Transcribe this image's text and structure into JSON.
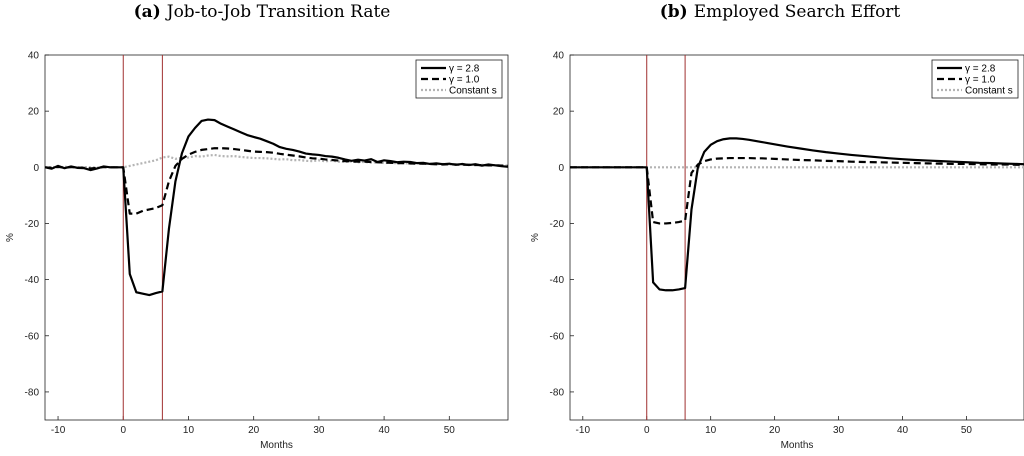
{
  "chart_data": [
    {
      "type": "line",
      "panel_tag": "(a)",
      "title": "Job-to-Job Transition Rate",
      "xlabel": "Months",
      "ylabel": "%",
      "xlim": [
        -12,
        59
      ],
      "ylim": [
        -90,
        40
      ],
      "xticks": [
        -10,
        0,
        10,
        20,
        30,
        40,
        50
      ],
      "yticks": [
        40,
        20,
        0,
        -20,
        -40,
        -60,
        -80
      ],
      "vlines": [
        0,
        6
      ],
      "vline_color": "#a03030",
      "grid": false,
      "legend_position": "top-right",
      "series": [
        {
          "name": "γ = 2.8",
          "style": "solid",
          "color": "#000000",
          "x": [
            -12,
            -11,
            -10,
            -9,
            -8,
            -7,
            -6,
            -5,
            -4,
            -3,
            -2,
            -1,
            0,
            1,
            2,
            3,
            4,
            5,
            6,
            7,
            8,
            9,
            10,
            11,
            12,
            13,
            14,
            15,
            16,
            17,
            18,
            19,
            20,
            21,
            22,
            23,
            24,
            25,
            26,
            27,
            28,
            29,
            30,
            31,
            32,
            33,
            34,
            35,
            36,
            37,
            38,
            39,
            40,
            41,
            42,
            43,
            44,
            45,
            46,
            47,
            48,
            49,
            50,
            51,
            52,
            53,
            54,
            55,
            56,
            57,
            58,
            59
          ],
          "y": [
            0,
            -0.5,
            0.5,
            -0.3,
            0.3,
            -0.2,
            -0.3,
            -1,
            -0.4,
            0.3,
            0,
            0,
            0,
            -38,
            -44.5,
            -45,
            -45.5,
            -44.8,
            -44.2,
            -22,
            -5,
            5,
            11,
            14,
            16.5,
            17,
            16.8,
            15.5,
            14.5,
            13.5,
            12.5,
            11.5,
            10.8,
            10.2,
            9.3,
            8.4,
            7.2,
            6.6,
            6.2,
            5.6,
            4.9,
            4.6,
            4.4,
            4,
            3.8,
            3.4,
            2.8,
            2.3,
            2.7,
            2.4,
            2.9,
            1.9,
            2.5,
            2.2,
            1.8,
            2,
            1.9,
            1.5,
            1.6,
            1.2,
            1.4,
            1.1,
            1.3,
            0.9,
            1.2,
            0.8,
            1.1,
            0.6,
            1,
            0.7,
            0.4,
            0.2
          ]
        },
        {
          "name": "γ = 1.0",
          "style": "dashed",
          "color": "#000000",
          "x": [
            -12,
            -11,
            -10,
            -9,
            -8,
            -7,
            -6,
            -5,
            -4,
            -3,
            -2,
            -1,
            0,
            1,
            2,
            3,
            4,
            5,
            6,
            7,
            8,
            9,
            10,
            11,
            12,
            13,
            14,
            15,
            16,
            17,
            18,
            19,
            20,
            21,
            22,
            23,
            24,
            25,
            26,
            27,
            28,
            29,
            30,
            31,
            32,
            33,
            34,
            35,
            36,
            37,
            38,
            39,
            40,
            41,
            42,
            43,
            44,
            45,
            46,
            47,
            48,
            49,
            50,
            51,
            52,
            53,
            54,
            55,
            56,
            57,
            58,
            59
          ],
          "y": [
            0,
            -0.2,
            0.2,
            -0.2,
            0.1,
            -0.1,
            -0.2,
            -0.4,
            -0.2,
            0.1,
            0,
            0,
            0,
            -16.5,
            -16.5,
            -15.5,
            -15,
            -14.5,
            -13.5,
            -5,
            0.5,
            3,
            4.5,
            5.5,
            6.2,
            6.5,
            6.8,
            6.8,
            6.7,
            6.5,
            6.2,
            5.9,
            5.6,
            5.5,
            5.4,
            5.2,
            4.8,
            4.5,
            4.2,
            3.9,
            3.5,
            3.2,
            3.1,
            2.8,
            2.6,
            2.4,
            2.2,
            2.1,
            2,
            2,
            1.9,
            1.8,
            1.7,
            1.6,
            1.5,
            1.5,
            1.4,
            1.3,
            1.3,
            1.2,
            1.1,
            1,
            1.1,
            1,
            0.9,
            0.9,
            0.8,
            0.8,
            0.7,
            0.7,
            0.6,
            0.5
          ]
        },
        {
          "name": "Constant s",
          "style": "dotted",
          "color": "#b4b4b4",
          "x": [
            -12,
            -11,
            -10,
            -9,
            -8,
            -7,
            -6,
            -5,
            -4,
            -3,
            -2,
            -1,
            0,
            1,
            2,
            3,
            4,
            5,
            6,
            7,
            8,
            9,
            10,
            11,
            12,
            13,
            14,
            15,
            16,
            17,
            18,
            19,
            20,
            21,
            22,
            23,
            24,
            25,
            26,
            27,
            28,
            29,
            30,
            31,
            32,
            33,
            34,
            35,
            36,
            37,
            38,
            39,
            40,
            41,
            42,
            43,
            44,
            45,
            46,
            47,
            48,
            49,
            50,
            51,
            52,
            53,
            54,
            55,
            56,
            57,
            58,
            59
          ],
          "y": [
            0,
            0.1,
            -0.1,
            0.2,
            0,
            -0.1,
            0.1,
            0,
            -0.1,
            0.1,
            0,
            0,
            0,
            0.5,
            1,
            1.5,
            2,
            2.5,
            3.5,
            3.8,
            3,
            3.4,
            3.5,
            4,
            3.8,
            4.2,
            4.4,
            4,
            3.9,
            4,
            3.7,
            3.5,
            3.3,
            3.3,
            3.2,
            3,
            2.8,
            2.9,
            2.5,
            2.6,
            2.3,
            2.2,
            2.5,
            2.1,
            2.4,
            2,
            1.9,
            2.1,
            1.8,
            1.9,
            1.7,
            1.8,
            1.5,
            1.6,
            1.4,
            1.5,
            1.3,
            1.4,
            1.2,
            1.3,
            1.1,
            1.2,
            1,
            1.1,
            0.9,
            1,
            0.8,
            0.9,
            0.7,
            0.8,
            0.7,
            0.6
          ]
        }
      ]
    },
    {
      "type": "line",
      "panel_tag": "(b)",
      "title": "Employed Search Effort",
      "xlabel": "Months",
      "ylabel": "%",
      "xlim": [
        -12,
        59
      ],
      "ylim": [
        -90,
        40
      ],
      "xticks": [
        -10,
        0,
        10,
        20,
        30,
        40,
        50
      ],
      "yticks": [
        40,
        20,
        0,
        -20,
        -40,
        -60,
        -80
      ],
      "vlines": [
        0,
        6
      ],
      "vline_color": "#a03030",
      "grid": false,
      "legend_position": "top-right",
      "series": [
        {
          "name": "γ = 2.8",
          "style": "solid",
          "color": "#000000",
          "x": [
            -12,
            -11,
            -10,
            -9,
            -8,
            -7,
            -6,
            -5,
            -4,
            -3,
            -2,
            -1,
            0,
            1,
            2,
            3,
            4,
            5,
            6,
            7,
            8,
            9,
            10,
            11,
            12,
            13,
            14,
            15,
            16,
            17,
            18,
            19,
            20,
            22,
            24,
            26,
            28,
            30,
            32,
            34,
            36,
            38,
            40,
            42,
            44,
            46,
            48,
            50,
            52,
            54,
            56,
            58,
            59
          ],
          "y": [
            0,
            0,
            0,
            0,
            0,
            0,
            0,
            0,
            0,
            0,
            0,
            0,
            0,
            -41,
            -43.5,
            -43.8,
            -43.8,
            -43.5,
            -43,
            -15,
            0,
            5.5,
            8,
            9.3,
            10,
            10.3,
            10.3,
            10.1,
            9.8,
            9.4,
            9,
            8.6,
            8.2,
            7.4,
            6.7,
            6,
            5.4,
            4.9,
            4.4,
            4,
            3.6,
            3.2,
            2.9,
            2.6,
            2.4,
            2.2,
            2,
            1.8,
            1.6,
            1.5,
            1.3,
            1.2,
            1.1
          ]
        },
        {
          "name": "γ = 1.0",
          "style": "dashed",
          "color": "#000000",
          "x": [
            -12,
            -11,
            -10,
            -9,
            -8,
            -7,
            -6,
            -5,
            -4,
            -3,
            -2,
            -1,
            0,
            1,
            2,
            3,
            4,
            5,
            6,
            7,
            8,
            9,
            10,
            11,
            12,
            13,
            14,
            15,
            16,
            17,
            18,
            19,
            20,
            22,
            24,
            26,
            28,
            30,
            32,
            34,
            36,
            38,
            40,
            42,
            44,
            46,
            48,
            50,
            52,
            54,
            56,
            58,
            59
          ],
          "y": [
            0,
            0,
            0,
            0,
            0,
            0,
            0,
            0,
            0,
            0,
            0,
            0,
            0,
            -19.5,
            -20,
            -20,
            -19.8,
            -19.5,
            -19,
            -2,
            1,
            2.2,
            2.8,
            3.1,
            3.2,
            3.3,
            3.3,
            3.3,
            3.3,
            3.2,
            3.2,
            3.1,
            3,
            2.8,
            2.6,
            2.5,
            2.3,
            2.2,
            2,
            1.9,
            1.8,
            1.7,
            1.6,
            1.5,
            1.4,
            1.3,
            1.2,
            1.2,
            1.1,
            1,
            1,
            0.9,
            0.9
          ]
        },
        {
          "name": "Constant s",
          "style": "dotted",
          "color": "#b4b4b4",
          "x": [
            -12,
            59
          ],
          "y": [
            0,
            0
          ]
        }
      ]
    }
  ]
}
